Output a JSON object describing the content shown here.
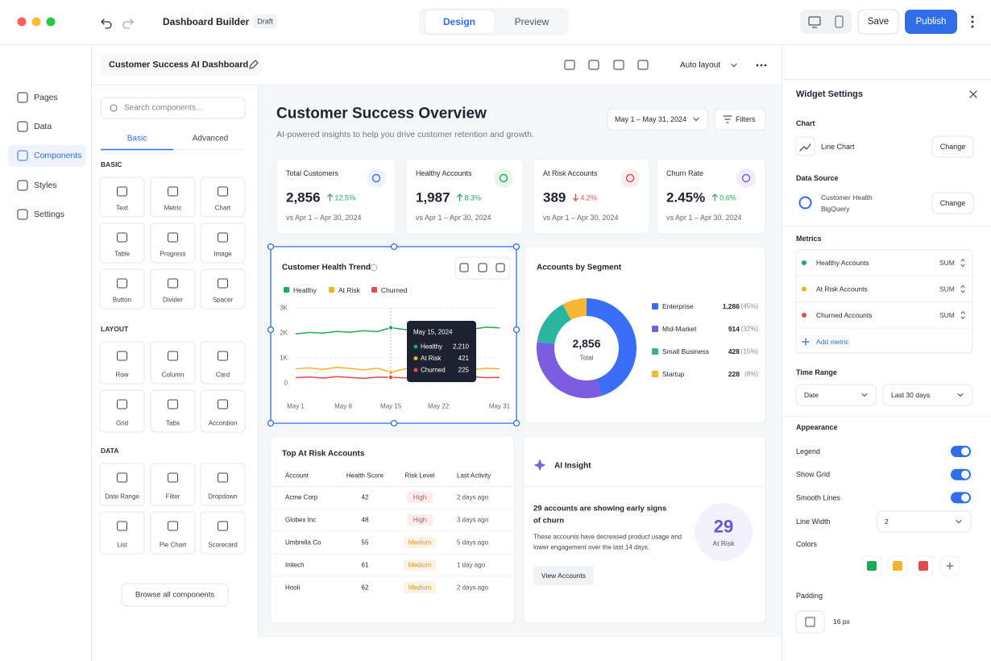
{
  "app": {
    "title": "Dashboard Builder",
    "status": "Draft",
    "tabs": [
      "Design",
      "Preview"
    ],
    "save": "Save",
    "publish": "Publish"
  },
  "nav": [
    "Pages",
    "Data",
    "Components",
    "Styles",
    "Settings"
  ],
  "dashboard_name": "Customer Success AI Dashboard",
  "toolbar": {
    "layout": "Auto layout"
  },
  "components": {
    "search": "Search components...",
    "tabs": [
      "Basic",
      "Advanced"
    ],
    "groups": [
      {
        "title": "BASIC",
        "items": [
          "Text",
          "Metric",
          "Chart",
          "Table",
          "Progress",
          "Image",
          "Button",
          "Divider",
          "Spacer"
        ]
      },
      {
        "title": "LAYOUT",
        "items": [
          "Row",
          "Column",
          "Card",
          "Grid",
          "Tabs",
          "Accordion"
        ]
      },
      {
        "title": "DATA",
        "items": [
          "Date Range",
          "Filter",
          "Dropdown",
          "List",
          "Pie Chart",
          "Scorecard"
        ]
      }
    ],
    "browse": "Browse all components"
  },
  "canvas": {
    "title": "Customer Success Overview",
    "subtitle": "AI-powered insights to help you drive customer retention and growth.",
    "date_range": "May 1 – May 31, 2024",
    "filters": "Filters"
  },
  "kpis": [
    {
      "label": "Total Customers",
      "value": "2,856",
      "change": "12.5%",
      "trend": "up",
      "compare": "vs Apr 1 – Apr 30, 2024"
    },
    {
      "label": "Healthy Accounts",
      "value": "1,987",
      "change": "8.3%",
      "trend": "up",
      "compare": "vs Apr 1 – Apr 30, 2024"
    },
    {
      "label": "At Risk Accounts",
      "value": "389",
      "change": "4.2%",
      "trend": "down",
      "compare": "vs Apr 1 – Apr 30, 2024"
    },
    {
      "label": "Churn Rate",
      "value": "2.45%",
      "change": "0.6%",
      "trend": "up",
      "compare": "vs Apr 1 – Apr 30, 2024"
    }
  ],
  "line_chart": {
    "type": "line",
    "title": "Customer Health Trend",
    "x": [
      1,
      3,
      5,
      7,
      9,
      11,
      13,
      15,
      17,
      19,
      21,
      23,
      25,
      27,
      29,
      31
    ],
    "xlim": [
      1,
      31
    ],
    "xticks": [
      {
        "value": 1,
        "label": "May 1"
      },
      {
        "value": 8,
        "label": "May 8"
      },
      {
        "value": 15,
        "label": "May 15"
      },
      {
        "value": 22,
        "label": "May 22"
      },
      {
        "value": 31,
        "label": "May 31"
      }
    ],
    "ylim": [
      0,
      3000
    ],
    "yticks": [
      0,
      {
        "value": 1000,
        "label": "1K"
      },
      {
        "value": 2000,
        "label": "2K"
      },
      {
        "value": 3000,
        "label": "3K"
      }
    ],
    "grid": true,
    "series": [
      {
        "name": "Healthy",
        "color": "#22a85a",
        "values": [
          1960,
          2020,
          1990,
          2060,
          2030,
          2090,
          2050,
          2210,
          2140,
          2100,
          2170,
          2110,
          2190,
          2150,
          2230,
          2200
        ]
      },
      {
        "name": "At Risk",
        "color": "#f5b12a",
        "values": [
          560,
          600,
          540,
          620,
          580,
          520,
          590,
          421,
          560,
          600,
          540,
          610,
          570,
          530,
          590,
          560
        ]
      },
      {
        "name": "Churned",
        "color": "#e5484d",
        "values": [
          210,
          240,
          190,
          250,
          220,
          180,
          230,
          225,
          200,
          240,
          210,
          190,
          230,
          250,
          210,
          220
        ]
      }
    ],
    "tooltip": {
      "date": "May 15, 2024",
      "rows": [
        {
          "name": "Healthy",
          "value": "2,210"
        },
        {
          "name": "At Risk",
          "value": "421"
        },
        {
          "name": "Churned",
          "value": "225"
        }
      ]
    }
  },
  "donut_chart": {
    "type": "pie",
    "title": "Accounts by Segment",
    "center_value": "2,856",
    "center_label": "Total",
    "categories": [
      "Enterprise",
      "Mid-Market",
      "Small Business",
      "Startup"
    ],
    "values": [
      1286,
      914,
      428,
      228
    ],
    "value_labels": [
      "1,286",
      "914",
      "428",
      "228"
    ],
    "share_labels": [
      "(45%)",
      "(32%)",
      "(15%)",
      "(8%)"
    ],
    "colors": [
      "#3b6ef6",
      "#7c5ce0",
      "#2bb5a0",
      "#f5b731"
    ]
  },
  "table": {
    "title": "Top At Risk Accounts",
    "columns": [
      "Account",
      "Health Score",
      "Risk Level",
      "Last Activity"
    ],
    "rows": [
      [
        "Acme Corp",
        42,
        "High",
        "2 days ago"
      ],
      [
        "Globex Inc",
        48,
        "High",
        "3 days ago"
      ],
      [
        "Umbrella Co",
        55,
        "Medium",
        "5 days ago"
      ],
      [
        "Initech",
        61,
        "Medium",
        "1 day ago"
      ],
      [
        "Hooli",
        62,
        "Medium",
        "2 days ago"
      ]
    ]
  },
  "insight": {
    "title": "AI Insight",
    "headline": [
      "29 accounts are showing early signs",
      "of churn"
    ],
    "body": [
      "These accounts have decreased product usage and",
      "lower engagement over the last 14 days."
    ],
    "button": "View Accounts",
    "count": "29",
    "count_label": "At Risk"
  },
  "settings": {
    "title": "Widget Settings",
    "chart_label": "Chart",
    "chart_value": "Line Chart",
    "change": "Change",
    "source_label": "Data Source",
    "source_name": "Customer Health",
    "source_type": "BigQuery",
    "metrics_label": "Metrics",
    "metrics": [
      {
        "name": "Healthy Accounts",
        "agg": "SUM"
      },
      {
        "name": "At Risk Accounts",
        "agg": "SUM"
      },
      {
        "name": "Churned Accounts",
        "agg": "SUM"
      }
    ],
    "add_metric": "Add metric",
    "time_label": "Time Range",
    "time_field": "Date",
    "time_value": "Last 30 days",
    "appearance_label": "Appearance",
    "toggles": [
      {
        "label": "Legend",
        "on": true
      },
      {
        "label": "Show Grid",
        "on": true
      },
      {
        "label": "Smooth Lines",
        "on": true
      }
    ],
    "line_width_label": "Line Width",
    "line_width": 2,
    "colors_label": "Colors",
    "padding_label": "Padding",
    "padding": "16 px"
  }
}
